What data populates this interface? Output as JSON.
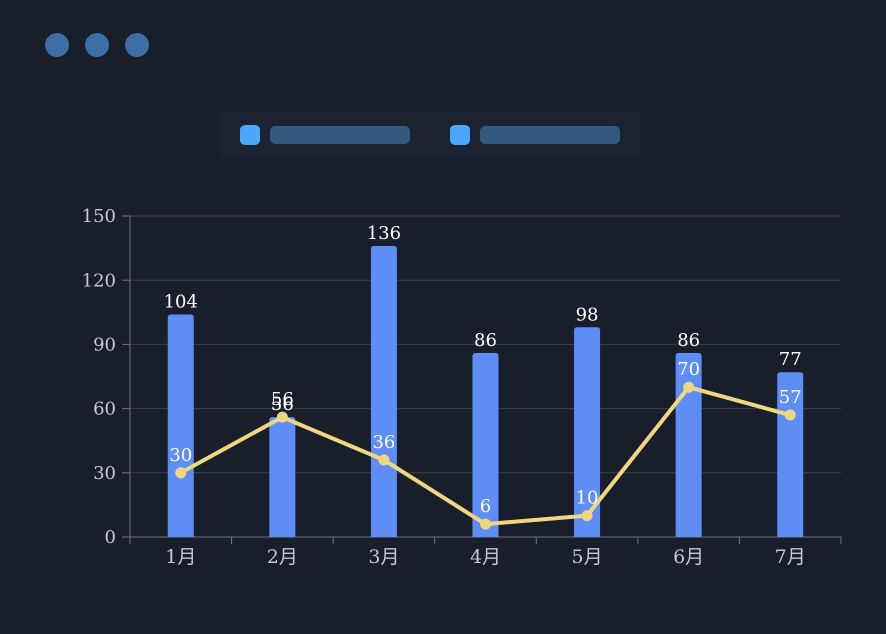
{
  "window": {
    "control_dots": {
      "count": 3,
      "color": "#3B6FA6"
    }
  },
  "legend": {
    "items": [
      {
        "name": "bar-series",
        "swatch_color": "#4BA7FF",
        "label_pill_color": "#32597E"
      },
      {
        "name": "line-series",
        "swatch_color": "#4BA7FF",
        "label_pill_color": "#32597E"
      }
    ],
    "panel_color": "#1B2230"
  },
  "chart_data": {
    "type": "combo",
    "categories": [
      "1月",
      "2月",
      "3月",
      "4月",
      "5月",
      "6月",
      "7月"
    ],
    "series": [
      {
        "name": "bar-series",
        "type": "bar",
        "color": "#5E8DF5",
        "values": [
          104,
          56,
          136,
          86,
          98,
          86,
          77
        ]
      },
      {
        "name": "line-series",
        "type": "line",
        "color": "#F0D681",
        "values": [
          30,
          56,
          36,
          6,
          10,
          70,
          57
        ]
      }
    ],
    "ylim": [
      0,
      150
    ],
    "yticks": [
      0,
      30,
      60,
      90,
      120,
      150
    ],
    "grid": true,
    "data_labels": true,
    "title": "",
    "xlabel": "",
    "ylabel": "",
    "legend_position": "top",
    "colors": {
      "background": "#181E2A",
      "grid_line": "#3B404B",
      "axis_line": "#71757E",
      "tick_label": "#C6C9D1",
      "value_label": "#FFFFFF"
    }
  }
}
